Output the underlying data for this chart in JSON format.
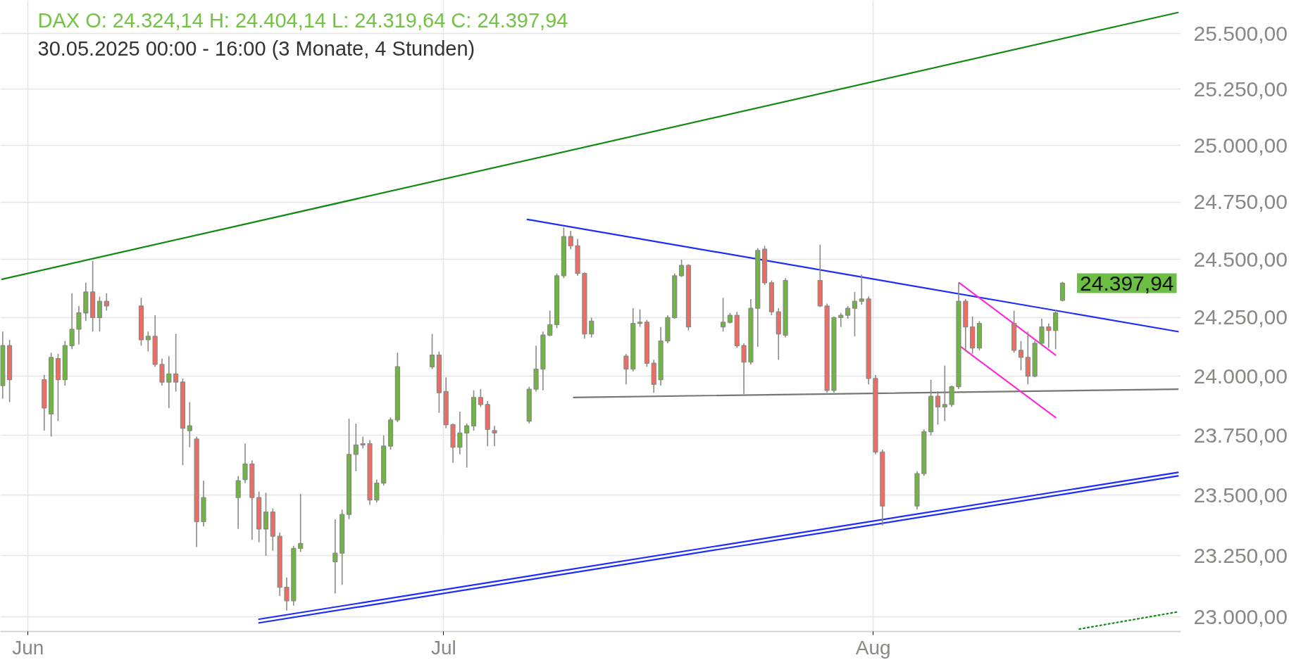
{
  "chart_data": {
    "type": "candlestick",
    "title": "DAX O: 24.324,14 H: 24.404,14 L: 24.319,64 C: 24.397,94",
    "subtitle": "30.05.2025 00:00 - 16:00 (3 Monate, 4 Stunden)",
    "xlim": [
      "2025-05-30T00:00",
      "2025-08-23T05:00"
    ],
    "xticks": [
      {
        "value": "2025-06-01",
        "label": "Jun"
      },
      {
        "value": "2025-07-01",
        "label": "Jul"
      },
      {
        "value": "2025-08-01",
        "label": "Aug"
      }
    ],
    "ylim": [
      22940,
      25650
    ],
    "yticks": [
      {
        "value": 23000,
        "label": "23.000,00"
      },
      {
        "value": 23250,
        "label": "23.250,00"
      },
      {
        "value": 23500,
        "label": "23.500,00"
      },
      {
        "value": 23750,
        "label": "23.750,00"
      },
      {
        "value": 24000,
        "label": "24.000,00"
      },
      {
        "value": 24250,
        "label": "24.250,00"
      },
      {
        "value": 24500,
        "label": "24.500,00"
      },
      {
        "value": 24750,
        "label": "24.750,00"
      },
      {
        "value": 25000,
        "label": "25.000,00"
      },
      {
        "value": 25250,
        "label": "25.250,00"
      },
      {
        "value": 25500,
        "label": "25.500,00"
      }
    ],
    "log": true,
    "grid": true,
    "annotations": [
      "24.397,94"
    ],
    "series": [
      {
        "color": "#8c8883",
        "x": [
          "2025-05-30T04:00",
          "2025-05-30T16:00",
          "2025-06-02T04:00",
          "2025-06-02T16:00",
          "2025-06-03T04:00",
          "2025-06-03T16:00",
          "2025-06-04T04:00",
          "2025-06-04T16:00",
          "2025-06-05T04:00",
          "2025-06-05T16:00",
          "2025-06-06T04:00",
          "2025-06-06T16:00",
          "2025-06-09T04:00",
          "2025-06-09T16:00",
          "2025-06-10T04:00",
          "2025-06-10T16:00",
          "2025-06-11T04:00",
          "2025-06-11T16:00",
          "2025-06-12T04:00",
          "2025-06-12T16:00",
          "2025-06-13T04:00",
          "2025-06-13T16:00",
          "2025-06-16T04:00",
          "2025-06-16T16:00",
          "2025-06-17T04:00",
          "2025-06-17T16:00",
          "2025-06-18T04:00",
          "2025-06-18T16:00",
          "2025-06-19T04:00",
          "2025-06-19T16:00",
          "2025-06-20T04:00",
          "2025-06-20T16:00",
          "2025-06-23T04:00",
          "2025-06-23T16:00",
          "2025-06-24T04:00",
          "2025-06-24T16:00",
          "2025-06-25T04:00",
          "2025-06-25T16:00",
          "2025-06-26T04:00",
          "2025-06-26T16:00",
          "2025-06-27T04:00",
          "2025-06-27T16:00",
          "2025-06-30T04:00",
          "2025-06-30T16:00",
          "2025-07-01T04:00",
          "2025-07-01T16:00",
          "2025-07-02T04:00",
          "2025-07-02T16:00",
          "2025-07-03T04:00",
          "2025-07-03T16:00",
          "2025-07-04T04:00",
          "2025-07-04T16:00",
          "2025-07-07T04:00",
          "2025-07-07T16:00",
          "2025-07-08T04:00",
          "2025-07-08T16:00",
          "2025-07-09T04:00",
          "2025-07-09T16:00",
          "2025-07-10T04:00",
          "2025-07-10T16:00",
          "2025-07-11T04:00",
          "2025-07-11T16:00",
          "2025-07-14T04:00",
          "2025-07-14T16:00",
          "2025-07-15T04:00",
          "2025-07-15T16:00",
          "2025-07-16T04:00",
          "2025-07-16T16:00",
          "2025-07-17T04:00",
          "2025-07-17T16:00",
          "2025-07-18T04:00",
          "2025-07-18T16:00",
          "2025-07-21T04:00",
          "2025-07-21T16:00",
          "2025-07-22T04:00",
          "2025-07-22T16:00",
          "2025-07-23T04:00",
          "2025-07-23T16:00",
          "2025-07-24T04:00",
          "2025-07-24T16:00",
          "2025-07-25T04:00",
          "2025-07-25T16:00",
          "2025-07-28T04:00",
          "2025-07-28T16:00",
          "2025-07-29T04:00",
          "2025-07-29T16:00",
          "2025-07-30T04:00",
          "2025-07-30T16:00",
          "2025-07-31T04:00",
          "2025-07-31T16:00",
          "2025-08-01T04:00",
          "2025-08-01T16:00",
          "2025-08-04T04:00",
          "2025-08-04T16:00",
          "2025-08-05T04:00",
          "2025-08-05T16:00",
          "2025-08-06T04:00",
          "2025-08-06T16:00",
          "2025-08-07T04:00",
          "2025-08-07T16:00",
          "2025-08-08T04:00",
          "2025-08-08T16:00",
          "2025-08-11T04:00",
          "2025-08-11T16:00",
          "2025-08-12T04:00",
          "2025-08-12T16:00",
          "2025-08-13T04:00",
          "2025-08-13T16:00",
          "2025-08-14T04:00",
          "2025-08-14T16:00"
        ],
        "ohlc": [
          [
            23960,
            24190,
            23905,
            24130
          ],
          [
            24130,
            24155,
            23890,
            23985
          ],
          [
            23985,
            24005,
            23770,
            23865
          ],
          [
            23840,
            24100,
            23745,
            24080
          ],
          [
            24075,
            24095,
            23810,
            23985
          ],
          [
            23985,
            24150,
            23960,
            24130
          ],
          [
            24130,
            24355,
            24115,
            24200
          ],
          [
            24200,
            24300,
            24135,
            24270
          ],
          [
            24270,
            24400,
            24235,
            24360
          ],
          [
            24360,
            24495,
            24190,
            24250
          ],
          [
            24250,
            24340,
            24190,
            24320
          ],
          [
            24320,
            24355,
            24280,
            24300
          ],
          [
            24300,
            24335,
            24130,
            24155
          ],
          [
            24155,
            24190,
            24105,
            24170
          ],
          [
            24170,
            24260,
            24040,
            24050
          ],
          [
            24050,
            24075,
            23960,
            23975
          ],
          [
            23975,
            24085,
            23865,
            24010
          ],
          [
            24010,
            24180,
            23935,
            23975
          ],
          [
            23975,
            23990,
            23625,
            23780
          ],
          [
            23770,
            23890,
            23700,
            23790
          ],
          [
            23735,
            23745,
            23285,
            23390
          ],
          [
            23390,
            23560,
            23370,
            23490
          ],
          [
            23490,
            23580,
            23360,
            23560
          ],
          [
            23565,
            23715,
            23550,
            23630
          ],
          [
            23630,
            23645,
            23315,
            23490
          ],
          [
            23490,
            23515,
            23305,
            23360
          ],
          [
            23360,
            23510,
            23250,
            23430
          ],
          [
            23430,
            23445,
            23270,
            23330
          ],
          [
            23330,
            23345,
            23085,
            23120
          ],
          [
            23120,
            23160,
            23025,
            23065
          ],
          [
            23065,
            23290,
            23045,
            23280
          ],
          [
            23280,
            23505,
            23265,
            23300
          ],
          [
            23225,
            23400,
            23095,
            23260
          ],
          [
            23260,
            23440,
            23130,
            23420
          ],
          [
            23420,
            23820,
            23400,
            23670
          ],
          [
            23670,
            23800,
            23600,
            23710
          ],
          [
            23710,
            23745,
            23695,
            23715
          ],
          [
            23715,
            23730,
            23460,
            23480
          ],
          [
            23480,
            23565,
            23470,
            23550
          ],
          [
            23550,
            23750,
            23540,
            23705
          ],
          [
            23705,
            23825,
            23690,
            23815
          ],
          [
            23815,
            24100,
            23805,
            24040
          ],
          [
            24040,
            24180,
            24030,
            24090
          ],
          [
            24090,
            24105,
            23845,
            23930
          ],
          [
            23935,
            23995,
            23780,
            23795
          ],
          [
            23795,
            23800,
            23635,
            23700
          ],
          [
            23700,
            23850,
            23670,
            23760
          ],
          [
            23760,
            23800,
            23615,
            23790
          ],
          [
            23790,
            23940,
            23770,
            23910
          ],
          [
            23910,
            23945,
            23870,
            23880
          ],
          [
            23880,
            23895,
            23705,
            23775
          ],
          [
            23770,
            23790,
            23705,
            23760
          ],
          [
            23810,
            23955,
            23800,
            23945
          ],
          [
            23945,
            24130,
            23935,
            24030
          ],
          [
            24030,
            24190,
            23940,
            24175
          ],
          [
            24175,
            24280,
            24170,
            24220
          ],
          [
            24220,
            24440,
            24205,
            24430
          ],
          [
            24430,
            24640,
            24420,
            24600
          ],
          [
            24600,
            24625,
            24545,
            24560
          ],
          [
            24560,
            24590,
            24430,
            24440
          ],
          [
            24440,
            24445,
            24160,
            24180
          ],
          [
            24180,
            24250,
            24165,
            24235
          ],
          [
            24085,
            24095,
            23965,
            24030
          ],
          [
            24030,
            24290,
            24020,
            24225
          ],
          [
            24225,
            24285,
            24210,
            24230
          ],
          [
            24230,
            24240,
            24040,
            24055
          ],
          [
            24055,
            24070,
            23930,
            23965
          ],
          [
            23985,
            24210,
            23960,
            24150
          ],
          [
            24150,
            24260,
            24140,
            24250
          ],
          [
            24250,
            24440,
            24245,
            24430
          ],
          [
            24430,
            24500,
            24425,
            24475
          ],
          [
            24475,
            24480,
            24195,
            24210
          ],
          [
            24210,
            24335,
            24190,
            24230
          ],
          [
            24230,
            24270,
            24225,
            24260
          ],
          [
            24260,
            24275,
            24120,
            24130
          ],
          [
            24130,
            24140,
            23925,
            24060
          ],
          [
            24060,
            24330,
            24050,
            24290
          ],
          [
            24290,
            24550,
            24125,
            24540
          ],
          [
            24545,
            24560,
            24390,
            24400
          ],
          [
            24400,
            24410,
            24260,
            24275
          ],
          [
            24275,
            24290,
            24070,
            24180
          ],
          [
            24175,
            24420,
            24165,
            24410
          ],
          [
            24410,
            24565,
            24295,
            24300
          ],
          [
            24300,
            24310,
            23930,
            23940
          ],
          [
            23940,
            24255,
            23930,
            24250
          ],
          [
            24250,
            24270,
            24210,
            24260
          ],
          [
            24260,
            24300,
            24245,
            24290
          ],
          [
            24290,
            24360,
            24170,
            24320
          ],
          [
            24320,
            24435,
            24305,
            24330
          ],
          [
            24330,
            24340,
            23965,
            23990
          ],
          [
            23990,
            24005,
            23670,
            23680
          ],
          [
            23680,
            23690,
            23375,
            23455
          ],
          [
            23455,
            23600,
            23440,
            23590
          ],
          [
            23590,
            23775,
            23580,
            23765
          ],
          [
            23765,
            23985,
            23750,
            23915
          ],
          [
            23915,
            23935,
            23795,
            23870
          ],
          [
            23870,
            24045,
            23810,
            23880
          ],
          [
            23880,
            23960,
            23870,
            23955
          ],
          [
            23955,
            24400,
            23945,
            24320
          ],
          [
            24320,
            24330,
            24105,
            24210
          ],
          [
            24210,
            24255,
            24095,
            24120
          ],
          [
            24120,
            24235,
            24110,
            24225
          ],
          [
            24225,
            24280,
            24100,
            24110
          ],
          [
            24110,
            24150,
            24025,
            24080
          ],
          [
            24080,
            24190,
            23965,
            24000
          ],
          [
            24000,
            24150,
            23995,
            24140
          ],
          [
            24140,
            24245,
            24130,
            24210
          ],
          [
            24210,
            24225,
            24120,
            24195
          ],
          [
            24195,
            24285,
            24115,
            24270
          ],
          [
            24324.14,
            24404.14,
            24319.64,
            24397.94
          ]
        ],
        "colors": [
          "#6cb73f",
          "#f26b63",
          "#f26b63",
          "#6cb73f",
          "#f26b63",
          "#6cb73f",
          "#6cb73f",
          "#6cb73f",
          "#6cb73f",
          "#f26b63",
          "#6cb73f",
          "#f26b63",
          "#f26b63",
          "#6cb73f",
          "#f26b63",
          "#f26b63",
          "#6cb73f",
          "#f26b63",
          "#f26b63",
          "#6cb73f",
          "#f26b63",
          "#6cb73f",
          "#6cb73f",
          "#6cb73f",
          "#f26b63",
          "#f26b63",
          "#6cb73f",
          "#f26b63",
          "#f26b63",
          "#f26b63",
          "#6cb73f",
          "#6cb73f",
          "#6cb73f",
          "#6cb73f",
          "#6cb73f",
          "#6cb73f",
          "#6cb73f",
          "#f26b63",
          "#6cb73f",
          "#6cb73f",
          "#6cb73f",
          "#6cb73f",
          "#6cb73f",
          "#f26b63",
          "#f26b63",
          "#f26b63",
          "#6cb73f",
          "#6cb73f",
          "#6cb73f",
          "#f26b63",
          "#f26b63",
          "#f26b63",
          "#6cb73f",
          "#6cb73f",
          "#6cb73f",
          "#6cb73f",
          "#6cb73f",
          "#6cb73f",
          "#f26b63",
          "#f26b63",
          "#f26b63",
          "#6cb73f",
          "#f26b63",
          "#6cb73f",
          "#6cb73f",
          "#f26b63",
          "#f26b63",
          "#6cb73f",
          "#6cb73f",
          "#6cb73f",
          "#6cb73f",
          "#f26b63",
          "#6cb73f",
          "#6cb73f",
          "#f26b63",
          "#f26b63",
          "#6cb73f",
          "#6cb73f",
          "#f26b63",
          "#f26b63",
          "#f26b63",
          "#6cb73f",
          "#f26b63",
          "#f26b63",
          "#6cb73f",
          "#6cb73f",
          "#6cb73f",
          "#6cb73f",
          "#6cb73f",
          "#f26b63",
          "#f26b63",
          "#f26b63",
          "#6cb73f",
          "#6cb73f",
          "#6cb73f",
          "#f26b63",
          "#6cb73f",
          "#6cb73f",
          "#6cb73f",
          "#f26b63",
          "#f26b63",
          "#6cb73f",
          "#f26b63",
          "#f26b63",
          "#f26b63",
          "#6cb73f",
          "#6cb73f",
          "#f26b63",
          "#6cb73f",
          "#6cb73f"
        ]
      },
      {
        "type": "line",
        "color": "#138a13",
        "x": [
          "2025-05-30T03:00",
          "2025-08-23T00:00"
        ],
        "values": [
          24415,
          25595
        ]
      },
      {
        "type": "line",
        "color": "#1c2bff",
        "x": [
          "2025-07-07T01:00",
          "2025-08-23T00:00"
        ],
        "values": [
          24675,
          24190
        ]
      },
      {
        "type": "line",
        "color": "#7a7572",
        "x": [
          "2025-07-10T09:00",
          "2025-08-23T00:00"
        ],
        "values": [
          23910,
          23945
        ]
      },
      {
        "type": "line",
        "color": "#1c2bff",
        "x": [
          "2025-06-17T16:00",
          "2025-08-23T00:00"
        ],
        "values": [
          22990,
          23595
        ]
      },
      {
        "type": "line",
        "color": "#1c2bff",
        "x": [
          "2025-06-17T16:00",
          "2025-08-23T00:00"
        ],
        "values": [
          22975,
          23580
        ]
      },
      {
        "type": "line",
        "color": "#ff2bd6",
        "x": [
          "2025-08-07T05:00",
          "2025-08-14T04:00"
        ],
        "values": [
          24400,
          24090
        ]
      },
      {
        "type": "line",
        "color": "#ff2bd6",
        "x": [
          "2025-08-07T05:00",
          "2025-08-14T04:00"
        ],
        "values": [
          24130,
          23825
        ]
      },
      {
        "type": "line",
        "color": "#138a13",
        "line_style": "dotted",
        "x": [
          "2025-08-15T21:00",
          "2025-08-23T00:00"
        ],
        "values": [
          22950,
          23020
        ]
      }
    ]
  }
}
